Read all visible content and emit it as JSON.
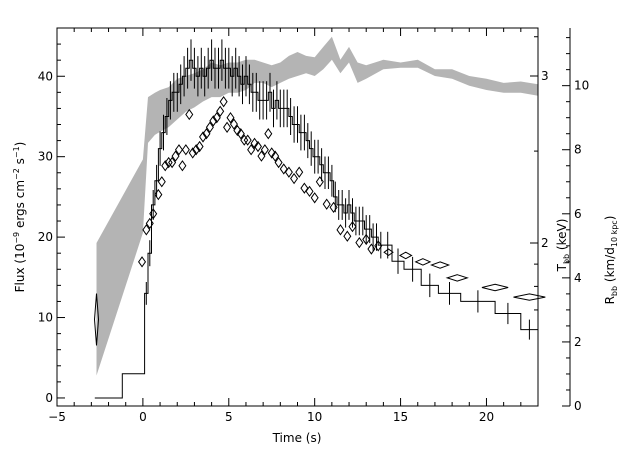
{
  "chart_data": {
    "type": "line",
    "xlabel": "Time (s)",
    "ylabel_left": {
      "main": "Flux (10",
      "sup1": "−9",
      "mid": " ergs cm",
      "sup2": "−2",
      "mid2": " s",
      "sup3": "−1",
      "end": ")"
    },
    "ylabel_t": {
      "main": "T",
      "sub": "bb",
      "end": " (keV)"
    },
    "ylabel_r": {
      "main": "R",
      "sub": "bb",
      "mid": " (km/d",
      "sub2": "10 kpc",
      "end": ")"
    },
    "xlim": [
      -5,
      23
    ],
    "ylim_flux": [
      -1,
      46
    ],
    "ylim_r": [
      0,
      11.8
    ],
    "x_ticks": [
      "−5",
      "0",
      "5",
      "10",
      "15",
      "20"
    ],
    "flux_ticks": [
      "0",
      "10",
      "20",
      "30",
      "40"
    ],
    "r_ticks": [
      "0",
      "2",
      "4",
      "6",
      "8",
      "10"
    ],
    "t_ticks": [
      "2",
      "3"
    ],
    "series": [
      {
        "kind": "flux_histogram",
        "x": [
          -2.8,
          -1.2,
          -0.1,
          0.1,
          0.3,
          0.5,
          0.7,
          0.9,
          1.1,
          1.3,
          1.5,
          1.7,
          1.9,
          2.1,
          2.3,
          2.5,
          2.7,
          2.9,
          3.1,
          3.3,
          3.5,
          3.7,
          3.9,
          4.1,
          4.3,
          4.5,
          4.7,
          4.9,
          5.1,
          5.3,
          5.5,
          5.7,
          5.9,
          6.1,
          6.3,
          6.5,
          6.7,
          6.9,
          7.1,
          7.3,
          7.5,
          7.7,
          7.9,
          8.1,
          8.3,
          8.5,
          8.7,
          8.9,
          9.1,
          9.3,
          9.5,
          9.7,
          9.9,
          10.1,
          10.3,
          10.5,
          10.7,
          10.9,
          11.1,
          11.3,
          11.5,
          11.7,
          11.9,
          12.1,
          12.3,
          12.5,
          12.7,
          12.9,
          13.1,
          13.3,
          13.5,
          13.7,
          14.0,
          14.5,
          15.2,
          16.2,
          17.2,
          18.5,
          20.5,
          22.0,
          23.0
        ],
        "y": [
          0,
          3,
          3,
          13,
          18,
          24,
          27,
          31,
          33,
          35,
          37,
          38,
          38,
          39,
          40,
          41,
          42,
          41,
          40,
          41,
          40,
          41,
          42,
          41,
          41,
          42,
          41,
          41,
          40,
          41,
          40,
          39,
          40,
          39,
          38,
          38,
          37,
          37,
          37,
          38,
          36,
          37,
          36,
          36,
          36,
          35,
          34,
          34,
          33,
          33,
          32,
          31,
          30,
          30,
          29,
          28,
          28,
          27,
          25,
          24,
          24,
          23,
          24,
          23,
          22,
          22,
          22,
          21,
          21,
          20,
          20,
          19,
          19,
          17,
          16,
          14,
          13,
          12,
          10.5,
          8.5,
          7
        ]
      },
      {
        "kind": "temperature_band",
        "x": [
          -2.7,
          0,
          0.3,
          0.7,
          1,
          1.5,
          2,
          2.5,
          3,
          3.5,
          4,
          4.5,
          5,
          5.5,
          6,
          6.5,
          7,
          7.5,
          8,
          8.5,
          9,
          9.5,
          10,
          10.5,
          11,
          11.5,
          12,
          12.5,
          13,
          14,
          15,
          16,
          17,
          18,
          19,
          20,
          21,
          22,
          23
        ],
        "low": [
          1.45,
          2.05,
          2.55,
          2.6,
          2.62,
          2.65,
          2.7,
          2.75,
          2.78,
          2.82,
          2.85,
          2.85,
          2.88,
          2.88,
          2.9,
          2.95,
          2.95,
          2.92,
          2.95,
          2.98,
          3.0,
          3.02,
          3.0,
          3.05,
          3.12,
          3.02,
          3.1,
          2.95,
          2.98,
          3.05,
          3.06,
          3.06,
          3.0,
          2.98,
          2.93,
          2.9,
          2.88,
          2.88,
          2.86
        ],
        "high": [
          2.0,
          2.45,
          2.85,
          2.88,
          2.9,
          2.92,
          2.98,
          3.0,
          3.02,
          3.05,
          3.1,
          3.08,
          3.1,
          3.1,
          3.12,
          3.12,
          3.1,
          3.08,
          3.1,
          3.15,
          3.18,
          3.15,
          3.14,
          3.22,
          3.3,
          3.12,
          3.22,
          3.1,
          3.08,
          3.12,
          3.1,
          3.12,
          3.05,
          3.05,
          3.0,
          2.98,
          2.95,
          2.96,
          2.94
        ]
      },
      {
        "kind": "radius_diamonds",
        "x": [
          -2.7,
          -0.05,
          0.2,
          0.4,
          0.6,
          0.9,
          1.1,
          1.3,
          1.5,
          1.7,
          1.9,
          2.1,
          2.3,
          2.5,
          2.7,
          2.9,
          3.1,
          3.3,
          3.5,
          3.7,
          3.9,
          4.1,
          4.3,
          4.5,
          4.7,
          4.9,
          5.1,
          5.3,
          5.5,
          5.7,
          5.9,
          6.1,
          6.3,
          6.5,
          6.7,
          6.9,
          7.1,
          7.3,
          7.5,
          7.7,
          7.9,
          8.2,
          8.5,
          8.8,
          9.1,
          9.4,
          9.7,
          10.0,
          10.3,
          10.7,
          11.1,
          11.5,
          11.9,
          12.2,
          12.6,
          13.0,
          13.3,
          13.7,
          14.3,
          15.3,
          16.3,
          17.3,
          18.3,
          20.5,
          22.5
        ],
        "y": [
          2.7,
          4.5,
          5.5,
          5.7,
          6.0,
          6.6,
          7.0,
          7.5,
          7.6,
          7.6,
          7.8,
          8.0,
          7.5,
          8.0,
          9.1,
          7.9,
          8.0,
          8.1,
          8.4,
          8.5,
          8.7,
          8.9,
          9.0,
          9.2,
          9.5,
          8.7,
          9.0,
          8.8,
          8.6,
          8.5,
          8.3,
          8.3,
          8.0,
          8.2,
          8.1,
          7.8,
          8.0,
          8.5,
          7.9,
          7.8,
          7.6,
          7.4,
          7.3,
          7.1,
          7.3,
          6.8,
          6.7,
          6.5,
          7.0,
          6.3,
          6.2,
          5.5,
          5.3,
          5.6,
          5.1,
          5.2,
          4.9,
          5.0,
          4.8,
          4.7,
          4.5,
          4.4,
          4.0,
          3.7,
          3.4
        ]
      }
    ]
  }
}
